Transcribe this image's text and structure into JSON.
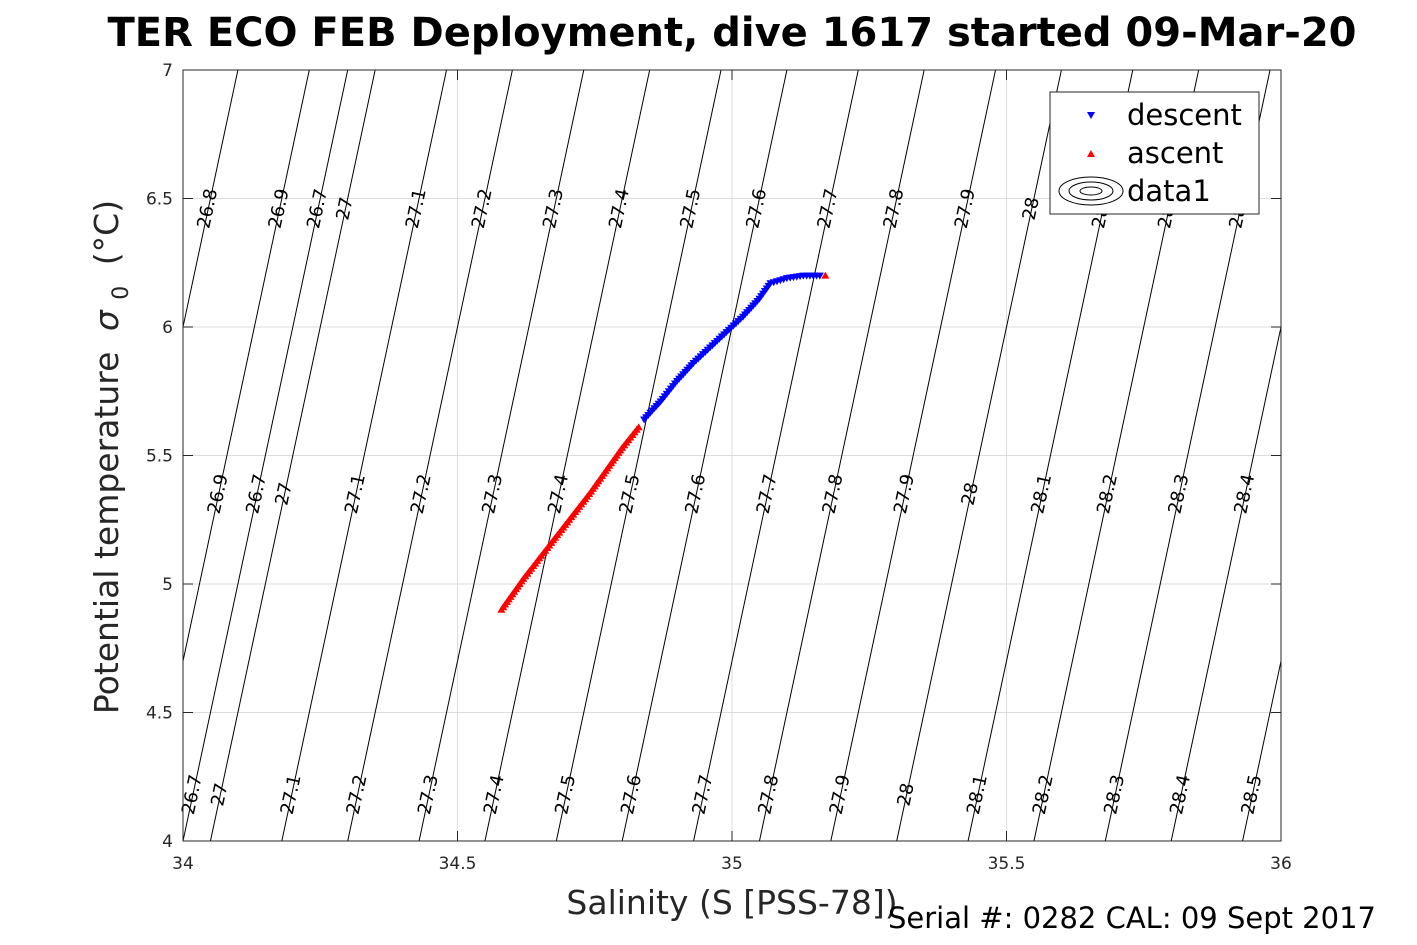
{
  "footer": {
    "text": "Serial #: 0282  CAL: 09 Sept 2017"
  },
  "chart_data": {
    "type": "scatter",
    "title": "TER ECO FEB Deployment, dive 1617 started 09-Mar-20",
    "xlabel": "Salinity (S [PSS-78])",
    "ylabel": "Potential temperature",
    "ylabel_subscript": "0",
    "ylabel_symbol": "σ",
    "ylabel_unit": "(°C)",
    "xlim": [
      34,
      36
    ],
    "ylim": [
      4,
      7
    ],
    "xticks": [
      "34",
      "34.5",
      "35",
      "35.5",
      "36"
    ],
    "yticks": [
      "4",
      "4.5",
      "5",
      "5.5",
      "6",
      "6.5",
      "7"
    ],
    "grid": true,
    "legend_position": "top-right",
    "legend": [
      "descent",
      "ascent",
      "data1"
    ],
    "colors": {
      "descent": "#0000ff",
      "ascent": "#ff0000",
      "contour": "#000000",
      "grid": "#dddddd"
    },
    "series": [
      {
        "name": "descent",
        "marker": "triangle-down",
        "points": [
          [
            34.84,
            5.64
          ],
          [
            34.87,
            5.71
          ],
          [
            34.9,
            5.79
          ],
          [
            34.93,
            5.86
          ],
          [
            34.96,
            5.92
          ],
          [
            34.99,
            5.98
          ],
          [
            35.02,
            6.04
          ],
          [
            35.05,
            6.11
          ],
          [
            35.07,
            6.17
          ],
          [
            35.1,
            6.19
          ],
          [
            35.13,
            6.2
          ],
          [
            35.16,
            6.2
          ]
        ]
      },
      {
        "name": "ascent",
        "marker": "triangle-up",
        "points": [
          [
            34.58,
            4.9
          ],
          [
            34.62,
            5.02
          ],
          [
            34.66,
            5.13
          ],
          [
            34.7,
            5.24
          ],
          [
            34.74,
            5.35
          ],
          [
            34.77,
            5.44
          ],
          [
            34.8,
            5.53
          ],
          [
            34.83,
            5.61
          ],
          [
            35.17,
            6.2
          ]
        ]
      }
    ],
    "contours": {
      "name": "data1",
      "levels": [
        {
          "v": "26.7",
          "x0": 34.0,
          "x1": 34.3
        },
        {
          "v": "26.8",
          "x0": 33.8,
          "x1": 34.1
        },
        {
          "v": "26.9",
          "x0": 33.93,
          "x1": 34.23
        },
        {
          "v": "27",
          "x0": 34.05,
          "x1": 34.35
        },
        {
          "v": "27.1",
          "x0": 34.18,
          "x1": 34.48
        },
        {
          "v": "27.2",
          "x0": 34.3,
          "x1": 34.6
        },
        {
          "v": "27.3",
          "x0": 34.43,
          "x1": 34.73
        },
        {
          "v": "27.4",
          "x0": 34.55,
          "x1": 34.85
        },
        {
          "v": "27.5",
          "x0": 34.68,
          "x1": 34.98
        },
        {
          "v": "27.6",
          "x0": 34.8,
          "x1": 35.1
        },
        {
          "v": "27.7",
          "x0": 34.93,
          "x1": 35.23
        },
        {
          "v": "27.8",
          "x0": 35.05,
          "x1": 35.35
        },
        {
          "v": "27.9",
          "x0": 35.18,
          "x1": 35.48
        },
        {
          "v": "28",
          "x0": 35.3,
          "x1": 35.6
        },
        {
          "v": "28.1",
          "x0": 35.43,
          "x1": 35.73
        },
        {
          "v": "28.2",
          "x0": 35.55,
          "x1": 35.85
        },
        {
          "v": "28.3",
          "x0": 35.68,
          "x1": 35.98
        },
        {
          "v": "28.4",
          "x0": 35.8,
          "x1": 36.1
        },
        {
          "v": "28.5",
          "x0": 35.93,
          "x1": 36.23
        }
      ]
    }
  }
}
